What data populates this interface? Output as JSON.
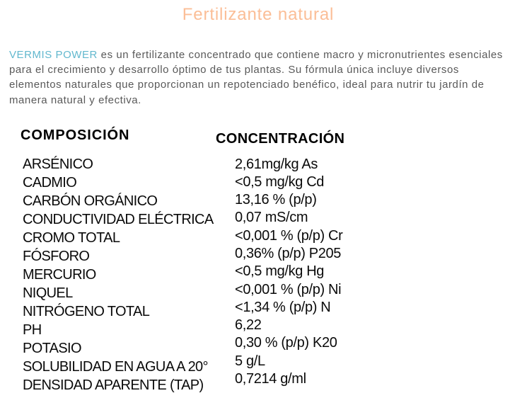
{
  "page": {
    "title": "Fertilizante natural"
  },
  "intro": {
    "brand": "VERMIS POWER",
    "text": " es un fertilizante concentrado que contiene macro y micronutrientes esenciales para el crecimiento y desarrollo óptimo de tus plantas. Su fórmula única incluye diversos elementos naturales que proporcionan un repotenciado benéfico, ideal para nutrir tu jardín de manera natural y efectiva."
  },
  "table": {
    "headers": {
      "composition": "COMPOSICIÓN",
      "concentration": "CONCENTRACIÓN"
    },
    "rows": [
      {
        "label": "ARSÉNICO",
        "value": "2,61mg/kg As"
      },
      {
        "label": "CADMIO",
        "value": "<0,5 mg/kg Cd"
      },
      {
        "label": "CARBÓN ORGÁNICO",
        "value": "13,16 % (p/p)"
      },
      {
        "label": "CONDUCTIVIDAD ELÉCTRICA",
        "value": "0,07 mS/cm"
      },
      {
        "label": "CROMO TOTAL",
        "value": "<0,001 % (p/p) Cr"
      },
      {
        "label": "FÓSFORO",
        "value": "0,36% (p/p) P205"
      },
      {
        "label": "MERCURIO",
        "value": "<0,5 mg/kg Hg"
      },
      {
        "label": "NIQUEL",
        "value": "<0,001 % (p/p) Ni"
      },
      {
        "label": "NITRÓGENO TOTAL",
        "value": "<1,34 % (p/p) N"
      },
      {
        "label": "PH",
        "value": "6,22"
      },
      {
        "label": "POTASIO",
        "value": "0,30 % (p/p) K20"
      },
      {
        "label": "SOLUBILIDAD EN AGUA A 20°",
        "value": "5 g/L"
      },
      {
        "label": "DENSIDAD APARENTE (TAP)",
        "value": "0,7214 g/ml"
      }
    ]
  },
  "colors": {
    "title": "#fbbe97",
    "brand": "#62b8ce",
    "body_text": "#595959",
    "table_text": "#000000",
    "background": "#ffffff"
  }
}
